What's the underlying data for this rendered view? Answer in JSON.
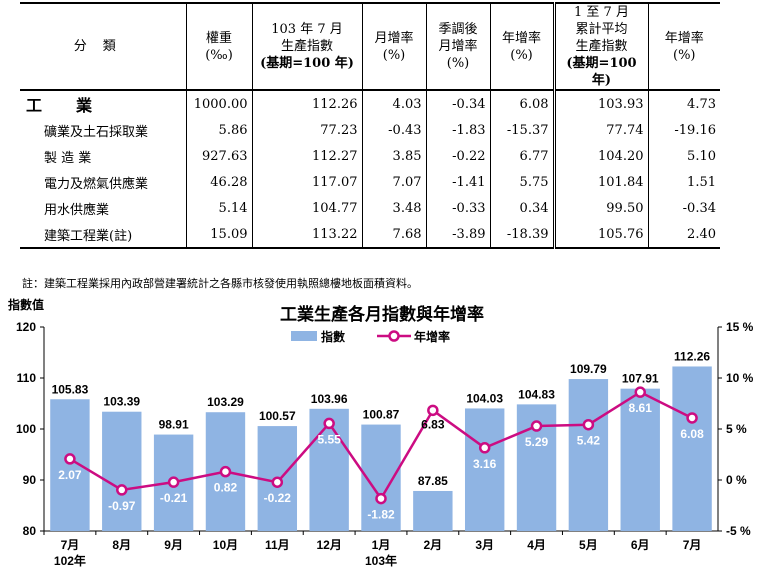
{
  "table": {
    "headers": {
      "category": "分類",
      "weight": "權重",
      "weight_unit": "(‰)",
      "index_l1": "103 年 7 月",
      "index_l2": "生產指數",
      "index_l3": "(基期=100 年)",
      "mom": "月增率",
      "mom_unit": "(%)",
      "sa_l1": "季調後",
      "sa_l2": "月增率",
      "sa_unit": "(%)",
      "yoy": "年增率",
      "yoy_unit": "(%)",
      "cum_l1": "1 至 7 月",
      "cum_l2": "累計平均",
      "cum_l3": "生產指數",
      "cum_l4": "(基期=100 年)",
      "cum_yoy": "年增率",
      "cum_yoy_unit": "(%)"
    },
    "rows": [
      {
        "name": "工業",
        "weight": "1000.00",
        "index": "112.26",
        "mom": "4.03",
        "sa": "-0.34",
        "yoy": "6.08",
        "cum": "103.93",
        "cum_yoy": "4.73"
      },
      {
        "name": "礦業及土石採取業",
        "weight": "5.86",
        "index": "77.23",
        "mom": "-0.43",
        "sa": "-1.83",
        "yoy": "-15.37",
        "cum": "77.74",
        "cum_yoy": "-19.16"
      },
      {
        "name": "製 造 業",
        "weight": "927.63",
        "index": "112.27",
        "mom": "3.85",
        "sa": "-0.22",
        "yoy": "6.77",
        "cum": "104.20",
        "cum_yoy": "5.10"
      },
      {
        "name": "電力及燃氣供應業",
        "weight": "46.28",
        "index": "117.07",
        "mom": "7.07",
        "sa": "-1.41",
        "yoy": "5.75",
        "cum": "101.84",
        "cum_yoy": "1.51"
      },
      {
        "name": "用水供應業",
        "weight": "5.14",
        "index": "104.77",
        "mom": "3.48",
        "sa": "-0.33",
        "yoy": "0.34",
        "cum": "99.50",
        "cum_yoy": "-0.34"
      },
      {
        "name": "建築工程業(註)",
        "weight": "15.09",
        "index": "113.22",
        "mom": "7.68",
        "sa": "-3.89",
        "yoy": "-18.39",
        "cum": "105.76",
        "cum_yoy": "2.40"
      }
    ],
    "note": "註：建築工程業採用內政部營建署統計之各縣市核發使用執照總樓地板面積資料。"
  },
  "chart_data": {
    "type": "bar",
    "title": "工業生產各月指數與年增率",
    "ylabel": "指數值",
    "categories": [
      "7月",
      "8月",
      "9月",
      "10月",
      "11月",
      "12月",
      "1月",
      "2月",
      "3月",
      "4月",
      "5月",
      "6月",
      "7月"
    ],
    "year_labels": [
      {
        "index": 0,
        "text": "102年"
      },
      {
        "index": 6,
        "text": "103年"
      }
    ],
    "series": [
      {
        "name": "指數",
        "type": "bar",
        "axis": "left",
        "color": "#8fb4e3",
        "values": [
          105.83,
          103.39,
          98.91,
          103.29,
          100.57,
          103.96,
          100.87,
          87.85,
          104.03,
          104.83,
          109.79,
          107.91,
          112.26
        ]
      },
      {
        "name": "年增率",
        "type": "line",
        "axis": "right",
        "color": "#cc0c82",
        "values": [
          2.07,
          -0.97,
          -0.21,
          0.82,
          -0.22,
          5.55,
          -1.82,
          6.83,
          3.16,
          5.29,
          5.42,
          8.61,
          6.08
        ]
      }
    ],
    "ylim_left": [
      80,
      120
    ],
    "yticks_left": [
      "80",
      "90",
      "100",
      "110",
      "120"
    ],
    "ylim_right": [
      -5,
      15
    ],
    "yticks_right": [
      "-5 %",
      "0 %",
      "5 %",
      "10 %",
      "15 %"
    ],
    "legend_position": "top",
    "grid": false
  }
}
